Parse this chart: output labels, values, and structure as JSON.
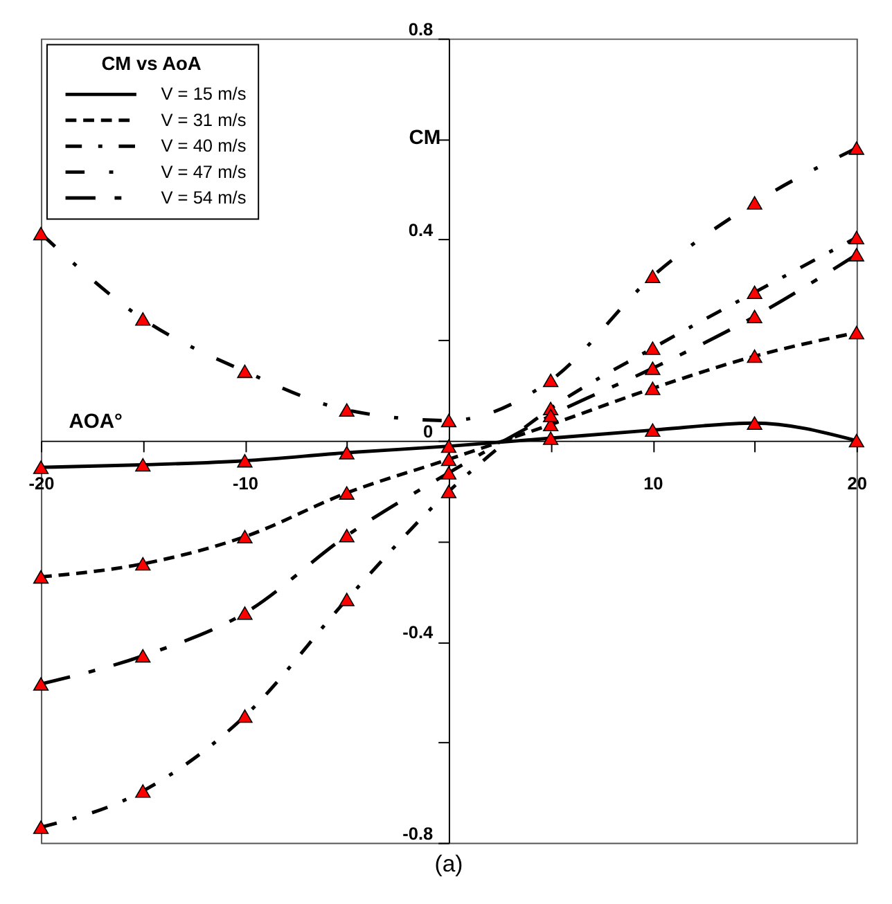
{
  "chart_data": {
    "type": "line",
    "legend_title": "CM vs AoA",
    "xlabel": "AOA°",
    "ylabel": "CM",
    "x": [
      -20,
      -15,
      -10,
      -5,
      0,
      5,
      10,
      15,
      20
    ],
    "series": [
      {
        "name": "V = 15 m/s",
        "color": "#000000",
        "line_style": "solid",
        "colors": [
          "#ff0000",
          "#ff0000",
          "#ff0000",
          "#ff0000",
          "#ff0000",
          "#ff0000",
          "#ff0000",
          "#ff0000",
          "#ff0000"
        ],
        "values": [
          -0.053,
          -0.048,
          -0.04,
          -0.024,
          -0.011,
          0.005,
          0.021,
          0.035,
          0.0
        ]
      },
      {
        "name": "V = 31 m/s",
        "color": "#000000",
        "line_style": "dashed",
        "colors": [
          "#ff0000",
          "#ff0000",
          "#ff0000",
          "#ff0000",
          "#ff0000",
          "#ff0000",
          "#ff0000",
          "#ff0000",
          "#ff0000"
        ],
        "values": [
          -0.271,
          -0.245,
          -0.191,
          -0.104,
          -0.037,
          0.032,
          0.104,
          0.168,
          0.215
        ]
      },
      {
        "name": "V = 40 m/s",
        "color": "#000000",
        "line_style": "dashdot",
        "colors": [
          "#ff0000",
          "#ff0000",
          "#ff0000",
          "#ff0000",
          "#ff0000",
          "#ff0000",
          "#ff0000",
          "#ff0000",
          "#ff0000"
        ],
        "values": [
          -0.769,
          -0.697,
          -0.548,
          -0.316,
          -0.101,
          0.064,
          0.184,
          0.295,
          0.404
        ]
      },
      {
        "name": "V = 47 m/s",
        "color": "#000000",
        "line_style": "dashdot",
        "colors": [
          "#ff0000",
          "#ff0000",
          "#ff0000",
          "#ff0000",
          "#ff0000",
          "#ff0000",
          "#ff0000",
          "#ff0000",
          "#ff0000"
        ],
        "values": [
          0.412,
          0.242,
          0.138,
          0.061,
          0.04,
          0.12,
          0.327,
          0.473,
          0.582
        ]
      },
      {
        "name": "V = 54 m/s",
        "color": "#000000",
        "line_style": "dashdot",
        "colors": [
          "#ff0000",
          "#ff0000",
          "#ff0000",
          "#ff0000",
          "#ff0000",
          "#ff0000",
          "#ff0000",
          "#ff0000",
          "#ff0000"
        ],
        "values": [
          -0.484,
          -0.428,
          -0.343,
          -0.189,
          -0.064,
          0.05,
          0.144,
          0.247,
          0.37
        ]
      }
    ],
    "xlim": [
      -20,
      20
    ],
    "xticks": [
      -20,
      {
        "value": -15,
        "label": null
      },
      -10,
      {
        "value": -5,
        "label": null
      },
      {
        "value": 0,
        "label": null
      },
      {
        "value": 5,
        "label": null
      },
      10,
      {
        "value": 15,
        "label": null
      },
      20
    ],
    "ylim": [
      -0.8,
      0.8
    ],
    "yticks": [
      -0.8,
      {
        "value": -0.6,
        "label": null
      },
      -0.4,
      {
        "value": -0.2,
        "label": null
      },
      0,
      {
        "value": 0.2,
        "label": null
      },
      0.4,
      {
        "value": 0.6,
        "label": null
      },
      0.8
    ],
    "marker": "triangle",
    "legend": "top left",
    "grid": false,
    "annotations": [
      "(a)"
    ]
  }
}
